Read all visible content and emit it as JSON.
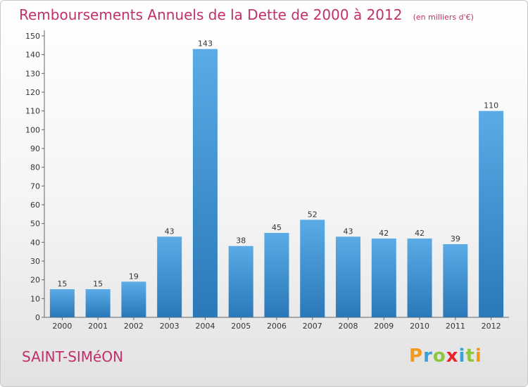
{
  "header": {
    "title": "Remboursements Annuels de la Dette de 2000 à 2012",
    "subtitle": "(en milliers d'€)"
  },
  "footer": {
    "town": "SAINT-SIMéON",
    "logo": [
      "P",
      "r",
      "o",
      "x",
      "i",
      "t",
      "i"
    ]
  },
  "colors": {
    "title": "#c0306a",
    "bar_top": "#5aabe6",
    "bar_bottom": "#2a78b8",
    "logo": [
      "#f39a1e",
      "#3aa0d8",
      "#8cc63f",
      "#e8232a",
      "#3aa0d8",
      "#8cc63f",
      "#f39a1e"
    ]
  },
  "chart_data": {
    "type": "bar",
    "title": "Remboursements Annuels de la Dette de 2000 à 2012",
    "subtitle": "(en milliers d'€)",
    "categories": [
      "2000",
      "2001",
      "2002",
      "2003",
      "2004",
      "2005",
      "2006",
      "2007",
      "2008",
      "2009",
      "2010",
      "2011",
      "2012"
    ],
    "values": [
      15,
      15,
      19,
      43,
      143,
      38,
      45,
      52,
      43,
      42,
      42,
      39,
      110
    ],
    "ylim": [
      0,
      150
    ],
    "yticks": [
      0,
      10,
      20,
      30,
      40,
      50,
      60,
      70,
      80,
      90,
      100,
      110,
      120,
      130,
      140,
      150
    ],
    "grid": false,
    "legend": "none"
  }
}
